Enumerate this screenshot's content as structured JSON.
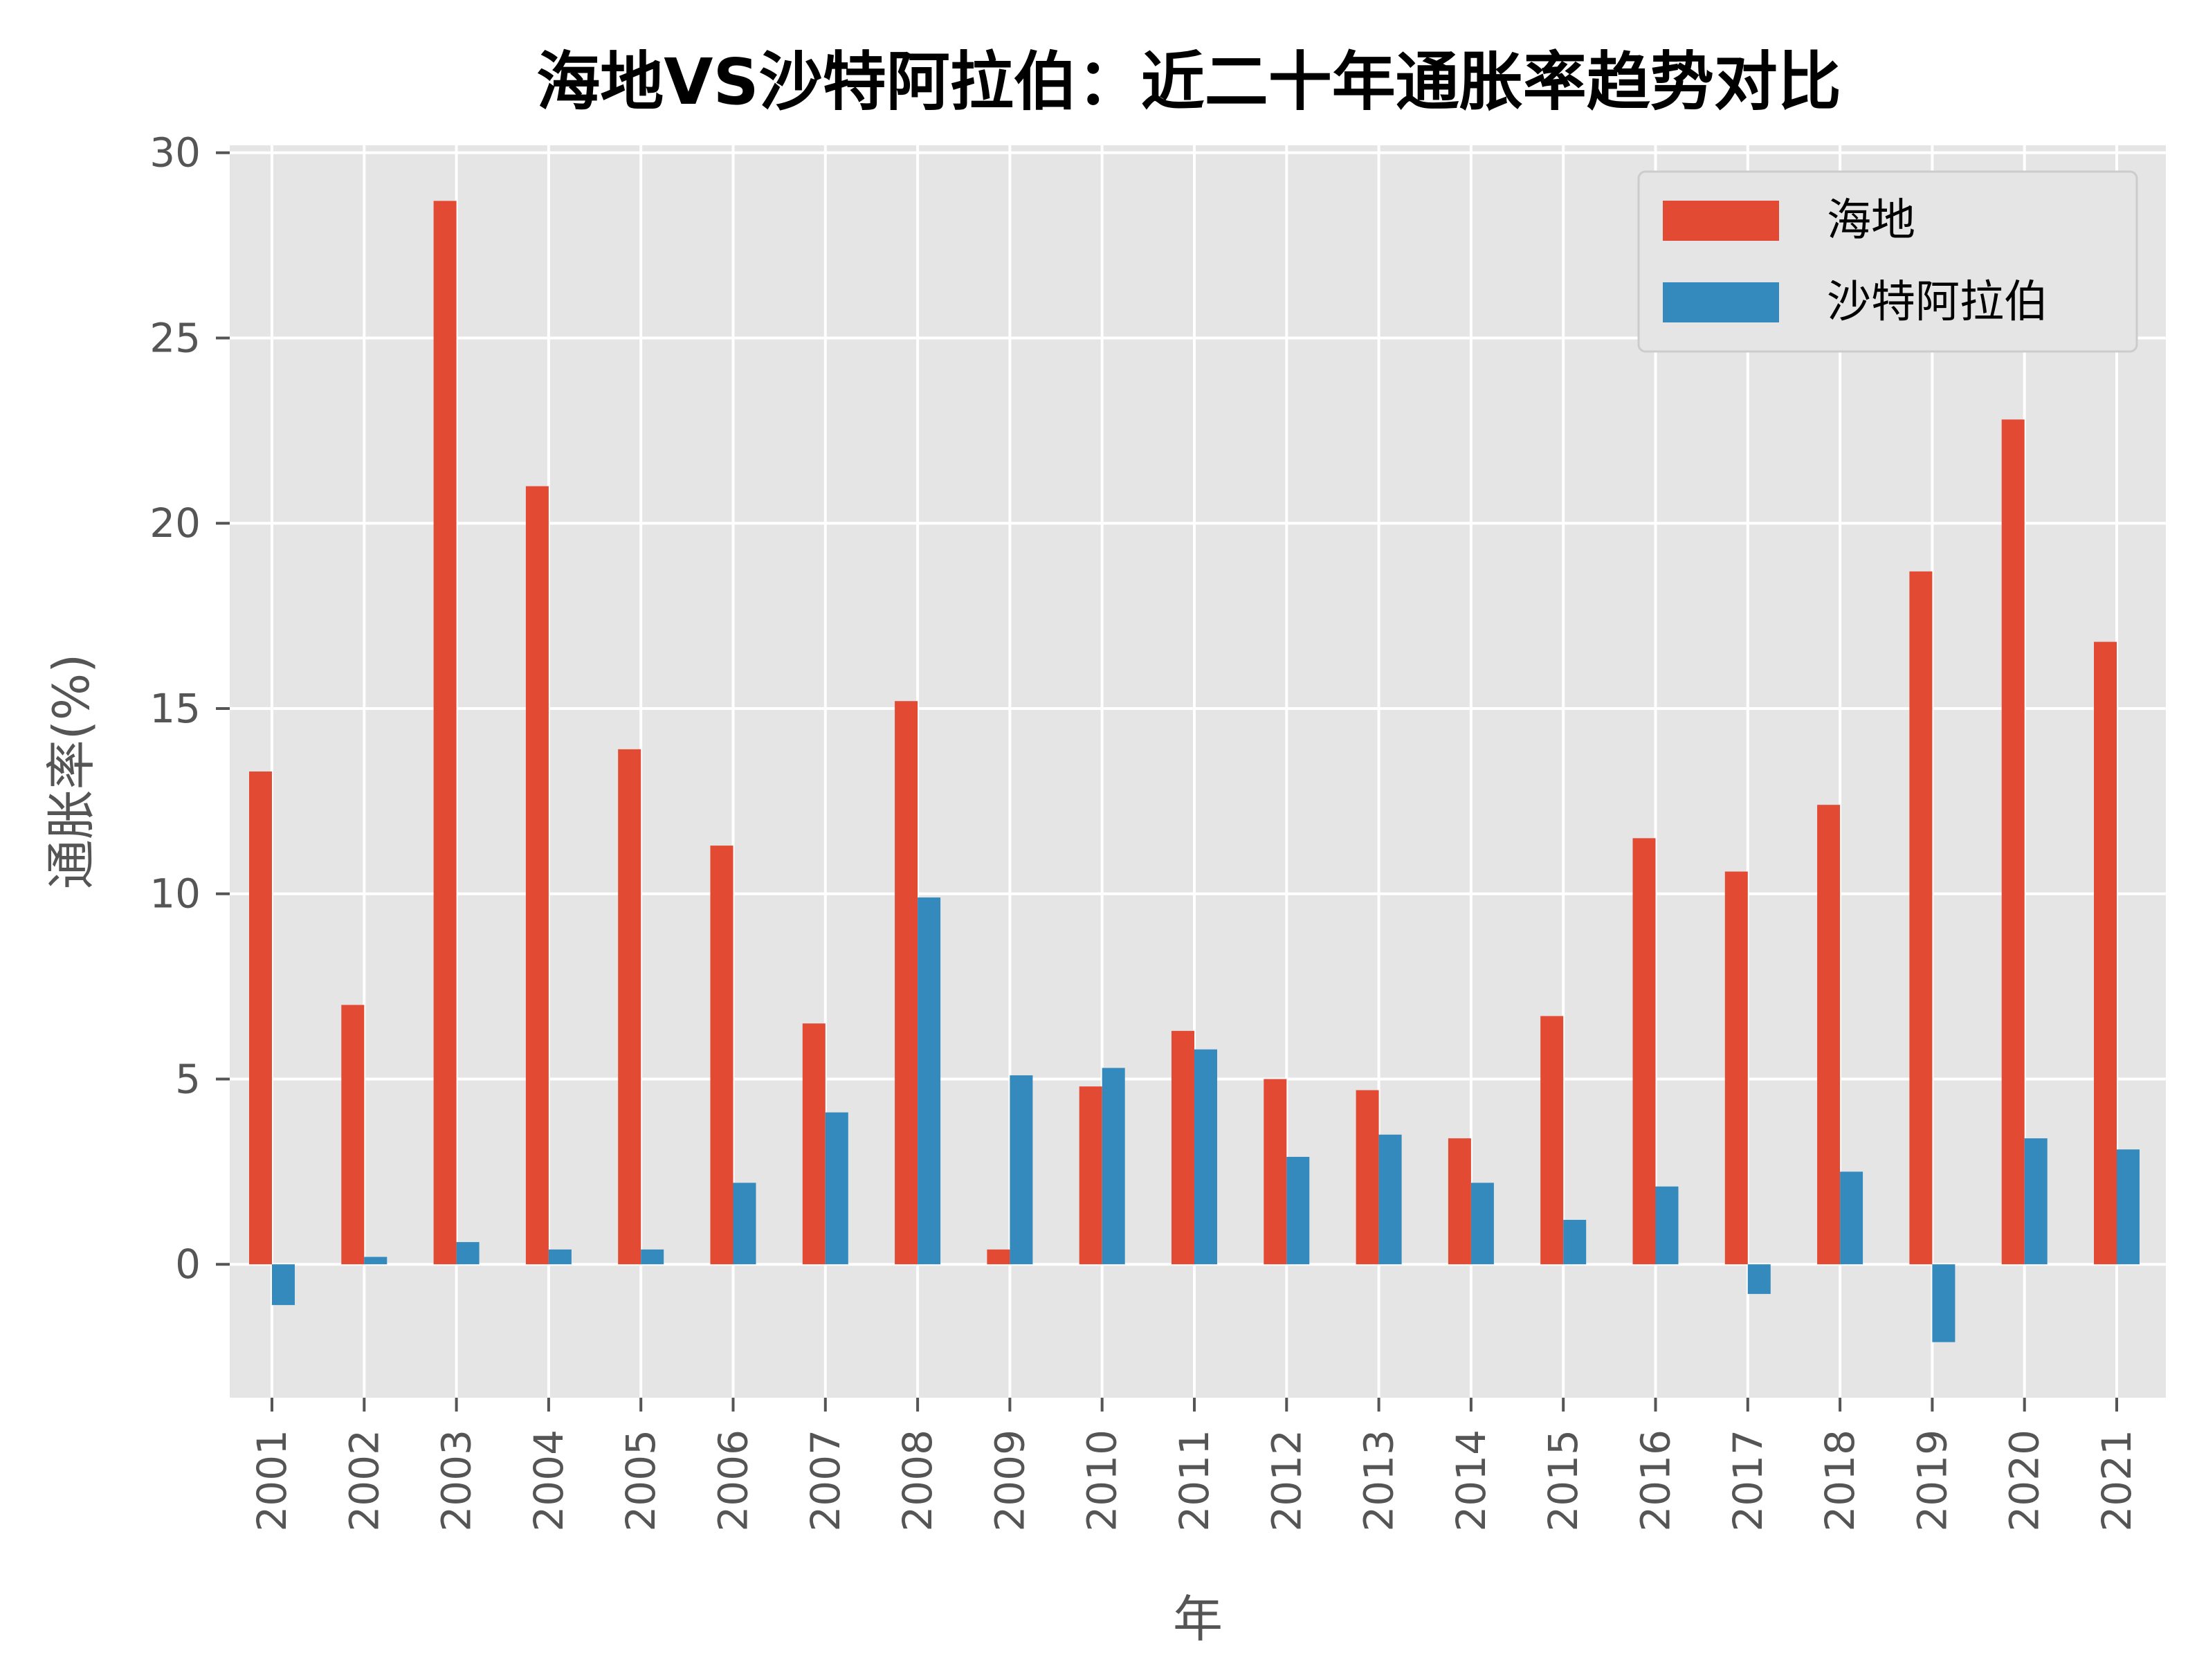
{
  "chart_data": {
    "type": "bar",
    "title": "海地VS沙特阿拉伯：近二十年通胀率趋势对比",
    "xlabel": "年",
    "ylabel": "通胀率(%)",
    "categories": [
      "2001",
      "2002",
      "2003",
      "2004",
      "2005",
      "2006",
      "2007",
      "2008",
      "2009",
      "2010",
      "2011",
      "2012",
      "2013",
      "2014",
      "2015",
      "2016",
      "2017",
      "2018",
      "2019",
      "2020",
      "2021"
    ],
    "series": [
      {
        "name": "海地",
        "color": "#e24a33",
        "values": [
          13.3,
          7.0,
          28.7,
          21.0,
          13.9,
          11.3,
          6.5,
          15.2,
          0.4,
          4.8,
          6.3,
          5.0,
          4.7,
          3.4,
          6.7,
          11.5,
          10.6,
          12.4,
          18.7,
          22.8,
          16.8
        ]
      },
      {
        "name": "沙特阿拉伯",
        "color": "#348abd",
        "values": [
          -1.1,
          0.2,
          0.6,
          0.4,
          0.4,
          2.2,
          4.1,
          9.9,
          5.1,
          5.3,
          5.8,
          2.9,
          3.5,
          2.2,
          1.2,
          2.1,
          -0.8,
          2.5,
          -2.1,
          3.4,
          3.1
        ]
      }
    ],
    "ylim": [
      -3.6,
      30.2
    ],
    "yticks": [
      0,
      5,
      10,
      15,
      20,
      25,
      30
    ],
    "grid": true,
    "legend_position": "top-right"
  }
}
